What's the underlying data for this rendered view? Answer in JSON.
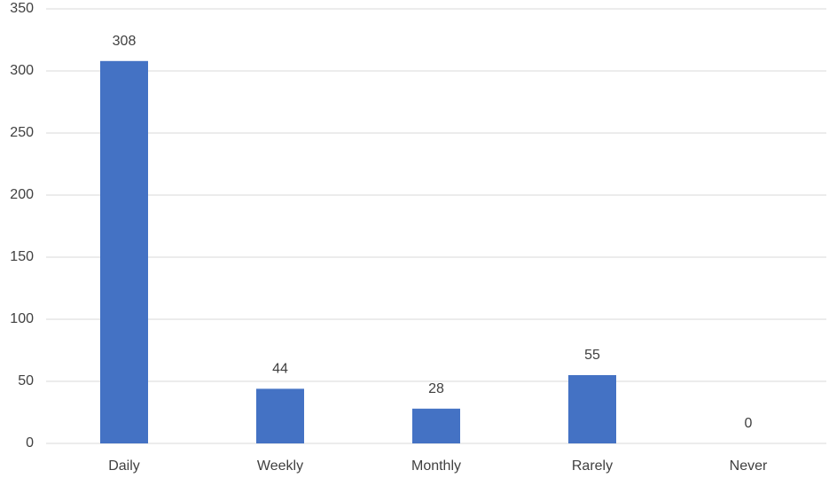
{
  "chart_data": {
    "type": "bar",
    "categories": [
      "Daily",
      "Weekly",
      "Monthly",
      "Rarely",
      "Never"
    ],
    "values": [
      308,
      44,
      28,
      55,
      0
    ],
    "color": "#4472c4",
    "ylim": [
      0,
      350
    ],
    "yticks": [
      0,
      50,
      100,
      150,
      200,
      250,
      300,
      350
    ],
    "grid": true
  }
}
